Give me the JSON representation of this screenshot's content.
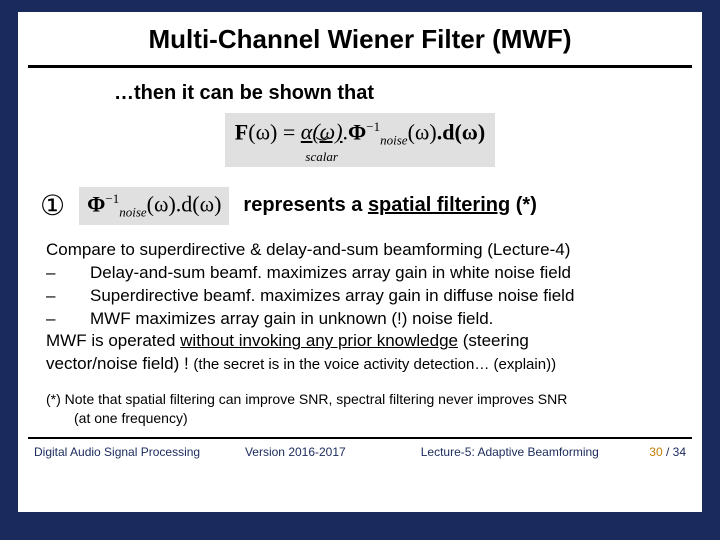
{
  "colors": {
    "slide_bg": "#1a2a5c",
    "page_bg": "#ffffff",
    "formula_bg": "#e0e0e0",
    "footer_text": "#1a2a5c",
    "page_current": "#c08000"
  },
  "title": "Multi-Channel Wiener Filter (MWF)",
  "shown": "…then it can be shown that",
  "formula_main": {
    "F": "F",
    "omega": "(ω) = ",
    "alpha": "α(ω)",
    "scalar_label": "scalar",
    "phi": "Φ",
    "phi_sup": "−1",
    "phi_sub": "noise",
    "d": ".d(ω)",
    "mid": "(ω)"
  },
  "marker": "①",
  "formula_rep": {
    "phi": "Φ",
    "phi_sup": "−1",
    "phi_sub": "noise",
    "rest": "(ω).d(ω)"
  },
  "rep_text_a": "represents a ",
  "rep_text_b": "spatial filtering",
  "rep_text_c": " (*)",
  "body": {
    "l1": "Compare to superdirective & delay-and-sum beamforming (Lecture-4)",
    "l2": "Delay-and-sum beamf. maximizes array gain in white noise field",
    "l3": "Superdirective beamf. maximizes array gain in diffuse noise field",
    "l4": "MWF maximizes array gain in unknown (!) noise field.",
    "l5a": "MWF is operated ",
    "l5b": "without invoking any prior knowledge",
    "l5c": " (steering",
    "l6": "vector/noise field) !  ",
    "secret": "(the secret is in the voice activity detection… (explain))",
    "dash": "–"
  },
  "footnote": {
    "l1": "(*)  Note that spatial filtering can improve SNR, spectral filtering never improves SNR",
    "l2": "(at one frequency)"
  },
  "footer": {
    "c1": "Digital Audio Signal Processing",
    "c2": "Version 2016-2017",
    "c3": "Lecture-5: Adaptive Beamforming",
    "page_cur": "30",
    "page_sep": " / ",
    "page_tot": "34"
  }
}
